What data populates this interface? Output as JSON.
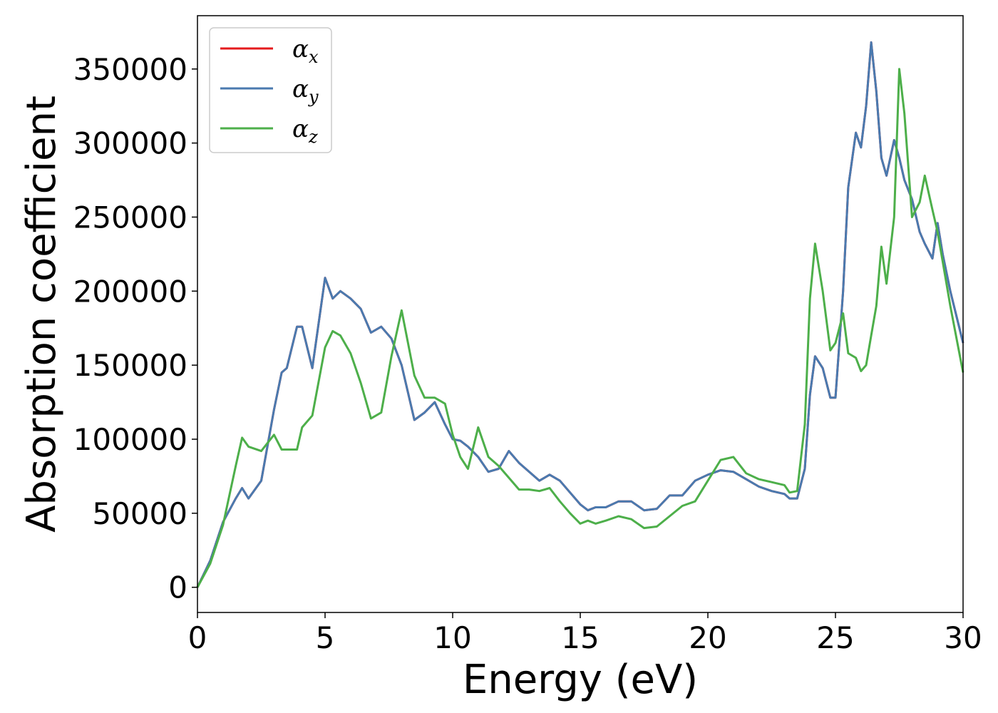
{
  "chart_data": {
    "type": "line",
    "title": "",
    "xlabel": "Energy (eV)",
    "ylabel": "Absorption coefficient",
    "xlim": [
      0,
      30
    ],
    "ylim": [
      -17000,
      386000
    ],
    "xticks": [
      0,
      5,
      10,
      15,
      20,
      25,
      30
    ],
    "xtick_labels": [
      "0",
      "5",
      "10",
      "15",
      "20",
      "25",
      "30"
    ],
    "yticks": [
      0,
      50000,
      100000,
      150000,
      200000,
      250000,
      300000,
      350000
    ],
    "ytick_labels": [
      "0",
      "50000",
      "100000",
      "150000",
      "200000",
      "250000",
      "300000",
      "350000"
    ],
    "grid": false,
    "legend_position": "top-left",
    "x": [
      0,
      0.5,
      1.0,
      1.5,
      1.75,
      2.0,
      2.5,
      3.0,
      3.3,
      3.5,
      3.9,
      4.1,
      4.5,
      5.0,
      5.3,
      5.6,
      6.0,
      6.4,
      6.8,
      7.2,
      7.6,
      8.0,
      8.5,
      8.9,
      9.3,
      9.7,
      10.0,
      10.3,
      10.6,
      11.0,
      11.4,
      11.8,
      12.2,
      12.6,
      13.0,
      13.4,
      13.8,
      14.2,
      14.6,
      15.0,
      15.3,
      15.6,
      16.0,
      16.5,
      17.0,
      17.5,
      18.0,
      18.5,
      19.0,
      19.5,
      20.0,
      20.5,
      21.0,
      21.5,
      22.0,
      22.5,
      23.0,
      23.2,
      23.5,
      23.8,
      24.0,
      24.2,
      24.5,
      24.8,
      25.0,
      25.3,
      25.5,
      25.8,
      26.0,
      26.2,
      26.4,
      26.6,
      26.8,
      27.0,
      27.3,
      27.5,
      27.7,
      28.0,
      28.3,
      28.5,
      28.8,
      29.0,
      29.2,
      29.5,
      30.0
    ],
    "series": [
      {
        "name": "x",
        "color": "#e41a1c",
        "values": [
          0,
          18000,
          44000,
          60000,
          67000,
          60000,
          72000,
          120000,
          145000,
          148000,
          176000,
          176000,
          148000,
          209000,
          195000,
          200000,
          195000,
          188000,
          172000,
          176000,
          168000,
          150000,
          113000,
          118000,
          125000,
          110000,
          100000,
          99000,
          95000,
          88000,
          78000,
          80000,
          92000,
          84000,
          78000,
          72000,
          76000,
          72000,
          64000,
          56000,
          52000,
          54000,
          54000,
          58000,
          58000,
          52000,
          53000,
          62000,
          62000,
          72000,
          76000,
          79000,
          78000,
          73000,
          68000,
          65000,
          63000,
          60000,
          60000,
          80000,
          130000,
          156000,
          148000,
          128000,
          128000,
          200000,
          270000,
          307000,
          297000,
          325000,
          368000,
          335000,
          290000,
          278000,
          302000,
          290000,
          275000,
          262000,
          240000,
          232000,
          222000,
          246000,
          225000,
          200000,
          165000
        ]
      },
      {
        "name": "y",
        "color": "#4a7aaf",
        "values": [
          0,
          18000,
          44000,
          60000,
          67000,
          60000,
          72000,
          120000,
          145000,
          148000,
          176000,
          176000,
          148000,
          209000,
          195000,
          200000,
          195000,
          188000,
          172000,
          176000,
          168000,
          150000,
          113000,
          118000,
          125000,
          110000,
          100000,
          99000,
          95000,
          88000,
          78000,
          80000,
          92000,
          84000,
          78000,
          72000,
          76000,
          72000,
          64000,
          56000,
          52000,
          54000,
          54000,
          58000,
          58000,
          52000,
          53000,
          62000,
          62000,
          72000,
          76000,
          79000,
          78000,
          73000,
          68000,
          65000,
          63000,
          60000,
          60000,
          80000,
          130000,
          156000,
          148000,
          128000,
          128000,
          200000,
          270000,
          307000,
          297000,
          325000,
          368000,
          335000,
          290000,
          278000,
          302000,
          290000,
          275000,
          262000,
          240000,
          232000,
          222000,
          246000,
          225000,
          200000,
          165000
        ]
      },
      {
        "name": "z",
        "color": "#4daf4a",
        "values": [
          0,
          16000,
          42000,
          82000,
          101000,
          95000,
          92000,
          103000,
          93000,
          93000,
          93000,
          108000,
          116000,
          162000,
          173000,
          170000,
          158000,
          138000,
          114000,
          118000,
          156000,
          187000,
          143000,
          128000,
          128000,
          124000,
          103000,
          88000,
          80000,
          108000,
          88000,
          82000,
          74000,
          66000,
          66000,
          65000,
          67000,
          58000,
          50000,
          43000,
          45000,
          43000,
          45000,
          48000,
          46000,
          40000,
          41000,
          48000,
          55000,
          58000,
          72000,
          86000,
          88000,
          77000,
          73000,
          71000,
          69000,
          64000,
          65000,
          110000,
          195000,
          232000,
          200000,
          160000,
          165000,
          185000,
          158000,
          155000,
          146000,
          150000,
          170000,
          190000,
          230000,
          205000,
          250000,
          350000,
          320000,
          250000,
          260000,
          278000,
          255000,
          240000,
          220000,
          190000,
          145000
        ]
      }
    ]
  },
  "legend": {
    "items": [
      {
        "symbol": "α",
        "sub": "x",
        "color": "#e41a1c"
      },
      {
        "symbol": "α",
        "sub": "y",
        "color": "#4a7aaf"
      },
      {
        "symbol": "α",
        "sub": "z",
        "color": "#4daf4a"
      }
    ]
  }
}
